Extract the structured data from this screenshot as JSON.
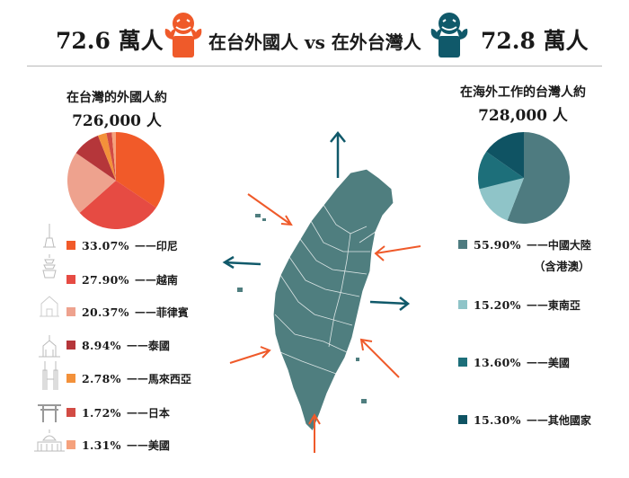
{
  "header": {
    "left_value": "72.6 萬人",
    "title": "在台外國人 vs 在外台灣人",
    "right_value": "72.8 萬人"
  },
  "colors": {
    "orange": "#ef5a2a",
    "teal": "#10596a",
    "map": "#4f7e7f"
  },
  "chart_data": [
    {
      "type": "pie",
      "title": "在台灣的外國人約",
      "subtitle": "726,000 人",
      "categories": [
        "印尼",
        "越南",
        "菲律賓",
        "泰國",
        "馬來西亞",
        "日本",
        "美國"
      ],
      "values": [
        33.07,
        27.9,
        20.37,
        8.94,
        2.78,
        1.72,
        1.31
      ],
      "labels": [
        "33.07%",
        "27.90%",
        "20.37%",
        "8.94%",
        "2.78%",
        "1.72%",
        "1.31%"
      ],
      "colors": [
        "#f15a29",
        "#e64b43",
        "#eea28e",
        "#b5363a",
        "#f3913a",
        "#d24b44",
        "#f5a17c"
      ],
      "legend": "left"
    },
    {
      "type": "pie",
      "title": "在海外工作的台灣人約",
      "subtitle": "728,000 人",
      "categories": [
        "中國大陸",
        "東南亞",
        "美國",
        "其他國家"
      ],
      "values": [
        55.9,
        15.2,
        13.6,
        15.3
      ],
      "labels": [
        "55.90%",
        "15.20%",
        "13.60%",
        "15.30%"
      ],
      "colors": [
        "#4e7b80",
        "#8fc4c8",
        "#1d6f7a",
        "#0f5363"
      ],
      "notes": [
        "（含港澳）"
      ],
      "legend": "right"
    }
  ]
}
